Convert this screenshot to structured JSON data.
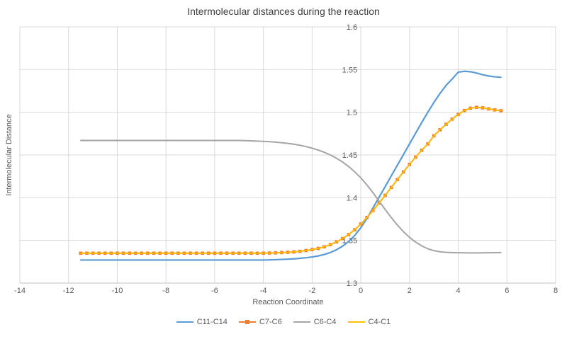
{
  "chart_data": {
    "type": "line",
    "title": "Intermolecular distances during the reaction",
    "xlabel": "Reaction Coordinate",
    "ylabel": "Intermolecular Distance",
    "xlim": [
      -14,
      8
    ],
    "ylim": [
      1.3,
      1.6
    ],
    "x_ticks": [
      -14,
      -12,
      -10,
      -8,
      -6,
      -4,
      -2,
      0,
      2,
      4,
      6,
      8
    ],
    "y_ticks": [
      1.3,
      1.35,
      1.4,
      1.45,
      1.5,
      1.55,
      1.6
    ],
    "y_tick_labels": [
      "1.3",
      "1.35",
      "1.4",
      "1.45",
      "1.5",
      "1.55",
      "1.6"
    ],
    "grid": true,
    "legend_position": "bottom",
    "value_axis_crosses_at_x": 0,
    "appearance": {
      "grid_color": "#D9D9D9",
      "axis_line_color": "#BFBFBF",
      "tick_label_color": "#595959",
      "title_color": "#404040",
      "background": "#FFFFFF"
    },
    "x": [
      -11.5,
      -11.25,
      -11,
      -10.75,
      -10.5,
      -10.25,
      -10,
      -9.75,
      -9.5,
      -9.25,
      -9,
      -8.75,
      -8.5,
      -8.25,
      -8,
      -7.75,
      -7.5,
      -7.25,
      -7,
      -6.75,
      -6.5,
      -6.25,
      -6,
      -5.75,
      -5.5,
      -5.25,
      -5,
      -4.75,
      -4.5,
      -4.25,
      -4,
      -3.75,
      -3.5,
      -3.25,
      -3,
      -2.75,
      -2.5,
      -2.25,
      -2,
      -1.75,
      -1.5,
      -1.25,
      -1,
      -0.75,
      -0.5,
      -0.25,
      0,
      0.25,
      0.5,
      0.75,
      1,
      1.25,
      1.5,
      1.75,
      2,
      2.25,
      2.5,
      2.75,
      3,
      3.25,
      3.5,
      3.75,
      4,
      4.25,
      4.5,
      4.75,
      5,
      5.25,
      5.5,
      5.75
    ],
    "series": [
      {
        "name": "C11-C14",
        "color": "#5B9BD5",
        "marker": "none",
        "width": 2.2,
        "values": [
          1.327,
          1.327,
          1.327,
          1.327,
          1.327,
          1.327,
          1.327,
          1.327,
          1.327,
          1.327,
          1.327,
          1.327,
          1.327,
          1.327,
          1.327,
          1.327,
          1.327,
          1.327,
          1.327,
          1.327,
          1.327,
          1.327,
          1.327,
          1.327,
          1.327,
          1.327,
          1.327,
          1.327,
          1.327,
          1.327,
          1.327,
          1.3272,
          1.3274,
          1.3277,
          1.328,
          1.3284,
          1.329,
          1.3297,
          1.3306,
          1.3318,
          1.3335,
          1.3358,
          1.339,
          1.3432,
          1.3487,
          1.3558,
          1.3648,
          1.3757,
          1.388,
          1.4005,
          1.413,
          1.4255,
          1.438,
          1.4505,
          1.463,
          1.4755,
          1.488,
          1.5,
          1.5115,
          1.522,
          1.5315,
          1.539,
          1.547,
          1.548,
          1.5475,
          1.546,
          1.544,
          1.5425,
          1.5415,
          1.541
        ]
      },
      {
        "name": "C7-C6",
        "color": "#ED7D31",
        "marker": "square",
        "width": 2,
        "values": [
          1.335,
          1.335,
          1.335,
          1.335,
          1.335,
          1.335,
          1.335,
          1.335,
          1.335,
          1.335,
          1.335,
          1.335,
          1.335,
          1.335,
          1.335,
          1.335,
          1.335,
          1.335,
          1.335,
          1.335,
          1.335,
          1.335,
          1.335,
          1.335,
          1.335,
          1.335,
          1.335,
          1.335,
          1.335,
          1.335,
          1.335,
          1.3352,
          1.3354,
          1.3357,
          1.336,
          1.3365,
          1.3372,
          1.3381,
          1.3392,
          1.3406,
          1.3425,
          1.345,
          1.3482,
          1.3521,
          1.3568,
          1.3625,
          1.3692,
          1.3768,
          1.385,
          1.3938,
          1.4028,
          1.412,
          1.4212,
          1.4302,
          1.439,
          1.4475,
          1.4555,
          1.463,
          1.4725,
          1.4795,
          1.486,
          1.492,
          1.4975,
          1.502,
          1.5048,
          1.5058,
          1.5052,
          1.504,
          1.5028,
          1.5018
        ]
      },
      {
        "name": "C6-C4",
        "color": "#A5A5A5",
        "marker": "none",
        "width": 2,
        "values": [
          1.467,
          1.467,
          1.467,
          1.467,
          1.467,
          1.467,
          1.467,
          1.467,
          1.467,
          1.467,
          1.467,
          1.467,
          1.467,
          1.467,
          1.467,
          1.467,
          1.467,
          1.467,
          1.467,
          1.467,
          1.467,
          1.467,
          1.467,
          1.467,
          1.467,
          1.467,
          1.467,
          1.4668,
          1.4666,
          1.4663,
          1.466,
          1.4656,
          1.465,
          1.4644,
          1.4636,
          1.4626,
          1.4614,
          1.4599,
          1.458,
          1.4558,
          1.4532,
          1.45,
          1.4462,
          1.4418,
          1.4365,
          1.4303,
          1.4232,
          1.415,
          1.4058,
          1.396,
          1.3862,
          1.3768,
          1.368,
          1.3602,
          1.3535,
          1.348,
          1.3436,
          1.3402,
          1.338,
          1.3367,
          1.336,
          1.3357,
          1.3355,
          1.3354,
          1.3353,
          1.3353,
          1.3354,
          1.3355,
          1.3356,
          1.3357
        ]
      },
      {
        "name": "C4-C1",
        "color": "#FFC000",
        "marker": "none",
        "width": 1.7,
        "values": [
          1.335,
          1.335,
          1.335,
          1.335,
          1.335,
          1.335,
          1.335,
          1.335,
          1.335,
          1.335,
          1.335,
          1.335,
          1.335,
          1.335,
          1.335,
          1.335,
          1.335,
          1.335,
          1.335,
          1.335,
          1.335,
          1.335,
          1.335,
          1.335,
          1.335,
          1.335,
          1.335,
          1.335,
          1.335,
          1.335,
          1.335,
          1.3352,
          1.3354,
          1.3357,
          1.336,
          1.3365,
          1.3372,
          1.3381,
          1.3392,
          1.3406,
          1.3425,
          1.345,
          1.3482,
          1.3521,
          1.3568,
          1.3625,
          1.3692,
          1.3768,
          1.385,
          1.3938,
          1.4028,
          1.412,
          1.4212,
          1.4302,
          1.439,
          1.4475,
          1.4555,
          1.463,
          1.4725,
          1.4795,
          1.486,
          1.492,
          1.4975,
          1.502,
          1.5048,
          1.5058,
          1.5052,
          1.504,
          1.5028,
          1.5018
        ]
      }
    ]
  }
}
